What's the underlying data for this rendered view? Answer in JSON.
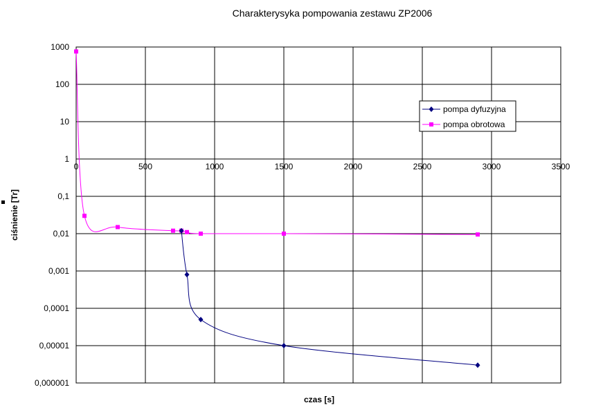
{
  "chart_data": {
    "type": "line",
    "title": "Charakterysyka pompowania zestawu ZP2006",
    "xlabel": "czas [s]",
    "ylabel": "ciśnienie [Tr]",
    "xlim": [
      0,
      3500
    ],
    "ylim": [
      1e-06,
      1000
    ],
    "yscale": "log",
    "grid": true,
    "legend_position": "top-right",
    "x_ticks": [
      "0",
      "500",
      "1000",
      "1500",
      "2000",
      "2500",
      "3000",
      "3500"
    ],
    "x_tick_values": [
      0,
      500,
      1000,
      1500,
      2000,
      2500,
      3000,
      3500
    ],
    "y_ticks": [
      "1000",
      "100",
      "10",
      "1",
      "0,1",
      "0,01",
      "0,001",
      "0,0001",
      "0,00001",
      "0,000001"
    ],
    "y_tick_values": [
      1000,
      100,
      10,
      1,
      0.1,
      0.01,
      0.001,
      0.0001,
      1e-05,
      1e-06
    ],
    "series": [
      {
        "name": "pompa dyfuzyjna",
        "color": "#000080",
        "marker": "diamond",
        "x": [
          760,
          800,
          900,
          1500,
          2900
        ],
        "y": [
          0.012,
          0.0008,
          5e-05,
          1e-05,
          3e-06
        ]
      },
      {
        "name": "pompa obrotowa",
        "color": "#ff00ff",
        "marker": "square",
        "x": [
          0,
          60,
          300,
          700,
          760,
          800,
          900,
          1500,
          2900
        ],
        "y": [
          760,
          0.03,
          0.015,
          0.012,
          0.012,
          0.011,
          0.01,
          0.01,
          0.0095
        ]
      }
    ]
  }
}
